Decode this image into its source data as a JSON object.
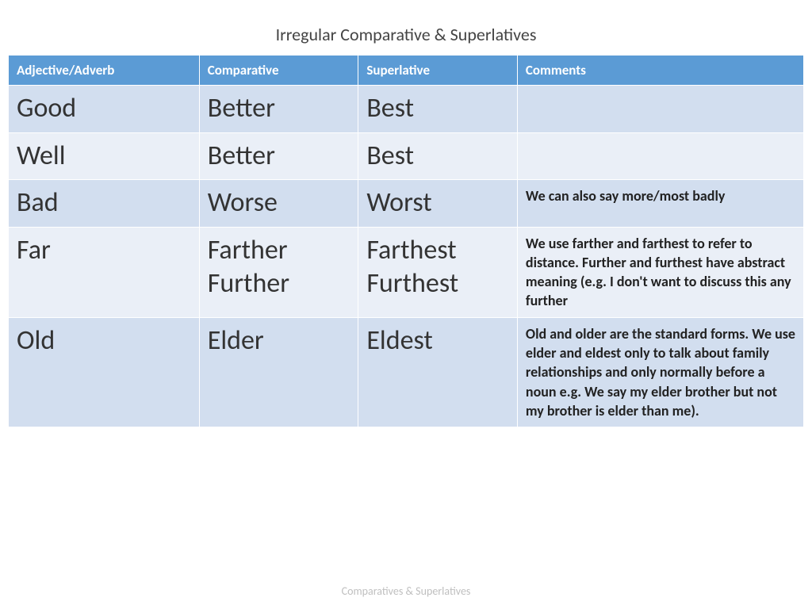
{
  "title": "Irregular Comparative & Superlatives",
  "footer": "Comparatives & Superlatives",
  "table": {
    "columns": [
      "Adjective/Adverb",
      "Comparative",
      "Superlative",
      "Comments"
    ],
    "column_widths_pct": [
      24,
      20,
      20,
      36
    ],
    "header_bg": "#5b9bd5",
    "header_color": "#ffffff",
    "band_colors": [
      "#d2deef",
      "#eaeff7"
    ],
    "big_fontsize": 34,
    "comment_fontsize": 18,
    "header_fontsize": 17,
    "rows": [
      {
        "adj": "Good",
        "comp": "Better",
        "sup": "Best",
        "comment": ""
      },
      {
        "adj": "Well",
        "comp": "Better",
        "sup": "Best",
        "comment": ""
      },
      {
        "adj": "Bad",
        "comp": "Worse",
        "sup": "Worst",
        "comment": "We can also say more/most badly"
      },
      {
        "adj": "Far",
        "comp": "Farther\nFurther",
        "sup": "Farthest\nFurthest",
        "comment": "We use farther and farthest  to refer to distance. Further and furthest have abstract meaning (e.g. I don't want to discuss this any further"
      },
      {
        "adj": "Old",
        "comp": "Elder",
        "sup": "Eldest",
        "comment": "Old and older are the standard forms. We use elder and eldest only to talk about family relationships and only normally before a noun e.g. We say my elder brother but not my brother is elder than me)."
      }
    ]
  }
}
